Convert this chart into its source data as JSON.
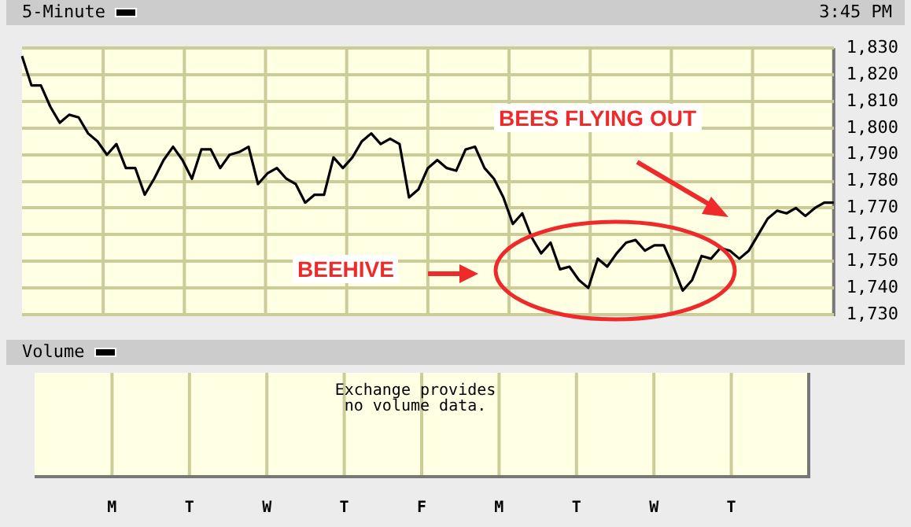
{
  "chart_data": [
    {
      "type": "line",
      "title": "5-Minute",
      "subtitle": "3:45 PM",
      "color": "#000000",
      "categories": [
        null,
        null,
        null,
        null,
        null,
        null,
        null,
        null,
        null,
        null,
        null,
        null,
        null,
        null,
        null,
        null,
        null,
        null,
        null,
        null,
        null,
        null,
        null,
        null,
        null,
        null,
        null,
        null,
        null,
        null,
        null,
        null,
        null,
        null,
        null,
        null,
        null,
        null,
        null,
        null,
        null,
        null,
        null,
        null,
        null,
        null,
        null,
        null,
        null,
        null,
        null,
        null,
        null,
        null,
        null,
        null,
        null,
        null,
        null,
        null,
        null,
        null,
        null,
        null,
        null,
        null,
        null,
        null,
        null,
        null,
        null,
        null,
        null,
        null,
        null,
        null,
        null,
        null,
        null,
        null,
        null,
        null,
        null,
        null,
        null,
        null,
        null
      ],
      "values": [
        1827,
        1816,
        1816,
        1808,
        1802,
        1805,
        1804,
        1798,
        1795,
        1790,
        1794,
        1785,
        1785,
        1775,
        1781,
        1788,
        1793,
        1788,
        1781,
        1792,
        1792,
        1785,
        1790,
        1791,
        1793,
        1779,
        1783,
        1785,
        1781,
        1779,
        1772,
        1775,
        1775,
        1789,
        1785,
        1789,
        1795,
        1798,
        1794,
        1796,
        1794,
        1774,
        1777,
        1785,
        1788,
        1785,
        1784,
        1792,
        1793,
        1785,
        1781,
        1774,
        1764,
        1768,
        1759,
        1753,
        1757,
        1747,
        1748,
        1743,
        1740,
        1751,
        1748,
        1753,
        1757,
        1758,
        1754,
        1756,
        1756,
        1748,
        1739,
        1743,
        1752,
        1751,
        1755,
        1754,
        1751,
        1754,
        1760,
        1766,
        1769,
        1768,
        1770,
        1767,
        1770,
        1772,
        1772
      ],
      "ylim": [
        1730,
        1830
      ],
      "yticks": [
        {
          "value": 1730,
          "label": "1,730"
        },
        {
          "value": 1740,
          "label": "1,740"
        },
        {
          "value": 1750,
          "label": "1,750"
        },
        {
          "value": 1760,
          "label": "1,760"
        },
        {
          "value": 1770,
          "label": "1,770"
        },
        {
          "value": 1780,
          "label": "1,780"
        },
        {
          "value": 1790,
          "label": "1,790"
        },
        {
          "value": 1800,
          "label": "1,800"
        },
        {
          "value": 1810,
          "label": "1,810"
        },
        {
          "value": 1820,
          "label": "1,820"
        },
        {
          "value": 1830,
          "label": "1,830"
        }
      ],
      "tick_labels": "y",
      "grid": true,
      "annotations": [
        "BEEHIVE",
        "BEES FLYING OUT"
      ]
    },
    {
      "type": "other",
      "title": "Volume",
      "annotations": [
        "Exchange provides no volume data."
      ],
      "categories": [
        "M",
        "T",
        "W",
        "T",
        "F",
        "M",
        "T",
        "W",
        "T"
      ]
    }
  ]
}
